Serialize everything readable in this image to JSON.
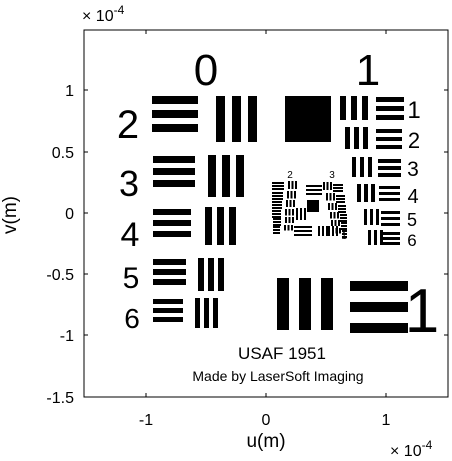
{
  "plot": {
    "x_label": "u(m)",
    "y_label": "v(m)",
    "x_exponent_base": "× 10",
    "x_exponent_power": "-4",
    "y_exponent_base": "× 10",
    "y_exponent_power": "-4",
    "x_ticks": [
      "-1",
      "0",
      "1"
    ],
    "y_ticks": [
      "1",
      "0.5",
      "0",
      "-0.5",
      "-1",
      "-1.5"
    ],
    "x_range": [
      -1.5,
      1.5
    ],
    "y_range": [
      -1.5,
      1.4
    ],
    "scale_factor": "1e-4"
  },
  "target": {
    "caption_title": "USAF 1951",
    "caption_credit": "Made by LaserSoft Imaging",
    "group_labels": [
      "0",
      "1",
      "2",
      "3"
    ],
    "element_labels_left": [
      "2",
      "3",
      "4",
      "5",
      "6"
    ],
    "element_labels_right": [
      "1",
      "2",
      "3",
      "4",
      "5",
      "6"
    ],
    "element_label_bottom_right": "1",
    "colors": {
      "bars": "#000000",
      "background": "#ffffff",
      "frame": "#000000"
    }
  }
}
